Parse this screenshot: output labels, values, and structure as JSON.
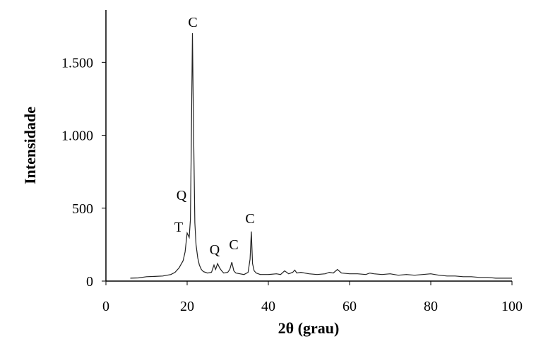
{
  "chart_data": {
    "type": "line",
    "xlabel": "2θ (grau)",
    "ylabel": "Intensidade",
    "x": [
      6,
      8,
      10,
      12,
      14,
      16,
      17,
      18,
      19,
      19.5,
      20,
      20.5,
      20.8,
      21,
      21.3,
      21.6,
      21.9,
      22.2,
      22.6,
      23,
      23.5,
      24,
      25,
      26,
      26.6,
      27,
      27.5,
      28,
      28.5,
      29,
      30,
      30.5,
      31,
      31.5,
      32,
      33,
      34,
      35,
      35.5,
      35.8,
      36.1,
      36.5,
      37,
      38,
      40,
      42,
      43,
      44,
      45,
      46,
      46.5,
      47,
      48,
      50,
      52,
      54,
      55,
      56,
      57,
      58,
      60,
      62,
      64,
      65,
      66,
      68,
      70,
      72,
      74,
      76,
      78,
      80,
      82,
      84,
      86,
      88,
      90,
      92,
      94,
      96,
      98,
      100
    ],
    "series": [
      {
        "color": "#222222",
        "values": [
          20,
          22,
          30,
          32,
          35,
          45,
          60,
          90,
          140,
          200,
          330,
          300,
          420,
          900,
          1700,
          1000,
          400,
          250,
          160,
          110,
          80,
          65,
          55,
          60,
          110,
          80,
          120,
          90,
          70,
          55,
          60,
          80,
          130,
          70,
          55,
          50,
          45,
          60,
          150,
          340,
          120,
          70,
          55,
          45,
          45,
          50,
          45,
          70,
          50,
          60,
          75,
          55,
          60,
          50,
          45,
          50,
          60,
          55,
          80,
          55,
          50,
          50,
          45,
          55,
          50,
          45,
          50,
          40,
          45,
          40,
          45,
          50,
          40,
          35,
          35,
          30,
          30,
          25,
          25,
          20,
          20,
          20
        ]
      }
    ],
    "annotations": [
      "C",
      "Q",
      "T",
      "Q",
      "C",
      "C"
    ],
    "xlim": [
      0,
      100
    ],
    "xticks": [
      0,
      20,
      40,
      60,
      80,
      100
    ],
    "ylim": [
      0,
      1860
    ],
    "yticks": [
      0,
      500,
      {
        "value": 1000,
        "label": "1.000"
      },
      {
        "value": 1500,
        "label": "1.500"
      }
    ],
    "grid": false
  }
}
